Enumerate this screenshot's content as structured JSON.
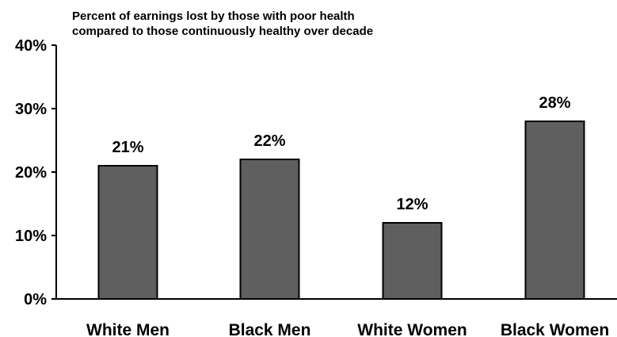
{
  "chart_data": {
    "type": "bar",
    "title_lines": [
      "Percent of earnings lost by those with poor health",
      "compared to those continuously healthy over decade"
    ],
    "categories": [
      "White Men",
      "Black Men",
      "White Women",
      "Black Women"
    ],
    "values": [
      21,
      22,
      12,
      28
    ],
    "data_labels": [
      "21%",
      "22%",
      "12%",
      "28%"
    ],
    "yticks": [
      0,
      10,
      20,
      30,
      40
    ],
    "ytick_labels": [
      "0%",
      "10%",
      "20%",
      "30%",
      "40%"
    ],
    "ylim": [
      0,
      40
    ],
    "xlabel": "",
    "ylabel": "",
    "grid": false,
    "legend": "none",
    "bar_color": "#5f5f5f",
    "bar_edge_color": "#000000"
  }
}
